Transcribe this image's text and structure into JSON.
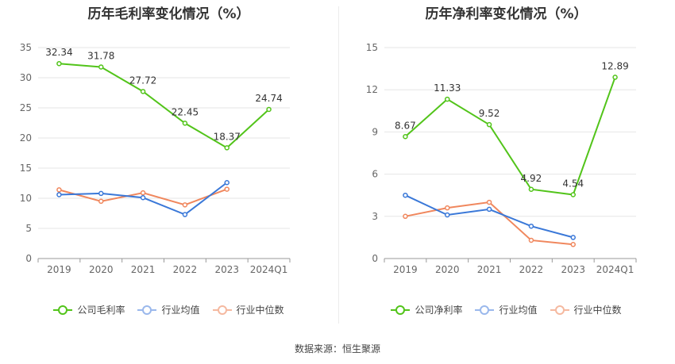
{
  "source_label": "数据来源：恒生聚源",
  "chart_data": [
    {
      "type": "line",
      "title": "历年毛利率变化情况（%）",
      "categories": [
        "2019",
        "2020",
        "2021",
        "2022",
        "2023",
        "2024Q1"
      ],
      "ylim": [
        0,
        35
      ],
      "yticks": [
        0,
        5,
        10,
        15,
        20,
        25,
        30,
        35
      ],
      "grid": true,
      "legend_position": "bottom",
      "series": [
        {
          "name": "公司毛利率",
          "color": "#52c41a",
          "values": [
            32.34,
            31.78,
            27.72,
            22.45,
            18.37,
            24.74
          ],
          "labels": [
            "32.34",
            "31.78",
            "27.72",
            "22.45",
            "18.37",
            "24.74"
          ]
        },
        {
          "name": "行业均值",
          "color": "#3a78d8",
          "values": [
            10.6,
            10.8,
            10.1,
            7.3,
            12.6,
            null
          ]
        },
        {
          "name": "行业中位数",
          "color": "#f0875d",
          "values": [
            11.4,
            9.5,
            10.9,
            8.9,
            11.5,
            null
          ]
        }
      ]
    },
    {
      "type": "line",
      "title": "历年净利率变化情况（%）",
      "categories": [
        "2019",
        "2020",
        "2021",
        "2022",
        "2023",
        "2024Q1"
      ],
      "ylim": [
        0,
        15
      ],
      "yticks": [
        0,
        3,
        6,
        9,
        12,
        15
      ],
      "grid": true,
      "legend_position": "bottom",
      "series": [
        {
          "name": "公司净利率",
          "color": "#52c41a",
          "values": [
            8.67,
            11.33,
            9.52,
            4.92,
            4.54,
            12.89
          ],
          "labels": [
            "8.67",
            "11.33",
            "9.52",
            "4.92",
            "4.54",
            "12.89"
          ]
        },
        {
          "name": "行业均值",
          "color": "#3a78d8",
          "values": [
            4.5,
            3.1,
            3.5,
            2.3,
            1.5,
            null
          ]
        },
        {
          "name": "行业中位数",
          "color": "#f0875d",
          "values": [
            3.0,
            3.6,
            4.0,
            1.3,
            1.0,
            null
          ]
        }
      ]
    }
  ]
}
